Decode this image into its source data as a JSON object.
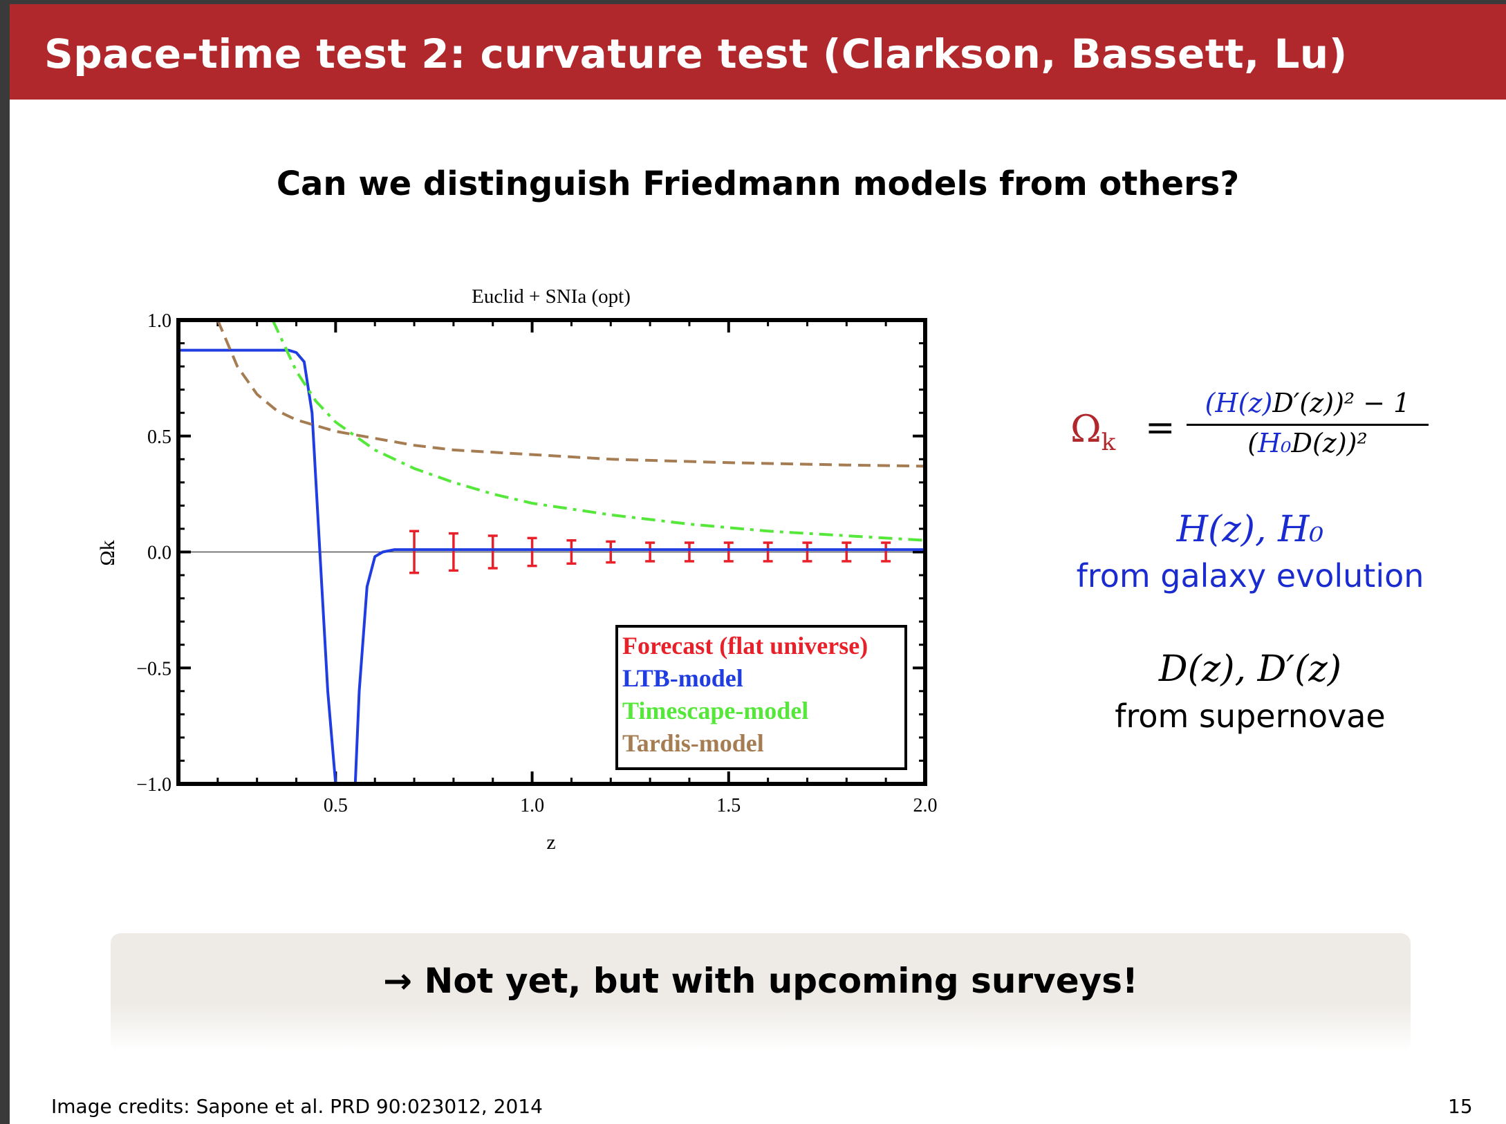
{
  "slide": {
    "title": "Space-time test 2: curvature test (Clarkson, Bassett, Lu)",
    "subtitle": "Can we distinguish Friedmann models from others?",
    "formula": {
      "lhs": "Ω",
      "lhs_sub": "k",
      "eq": "=",
      "numerator_hz": "(H(z)",
      "numerator_rest": "D′(z))² − 1",
      "denominator_pre": "(",
      "denominator_h0": "H₀",
      "denominator_rest": "D(z))²"
    },
    "hz_math": "H(z), H₀",
    "hz_label": "from galaxy evolution",
    "dz_math": "D(z), D′(z)",
    "dz_label": "from supernovae",
    "callout": "→ Not yet, but with upcoming surveys!",
    "credits": "Image credits: Sapone et al. PRD 90:023012, 2014",
    "page_number": "15"
  },
  "chart_data": {
    "type": "line",
    "title": "Euclid + SNIa (opt)",
    "xlabel": "z",
    "ylabel": "Ωk",
    "xlim": [
      0.1,
      2.0
    ],
    "ylim": [
      -1.0,
      1.0
    ],
    "x_ticks": [
      "0.5",
      "1.0",
      "1.5",
      "2.0"
    ],
    "y_ticks": [
      "1.0",
      "0.5",
      "0.0",
      "−0.5",
      "−1.0"
    ],
    "legend_position": "bottom-right",
    "series": [
      {
        "name": "Forecast (flat universe)",
        "color": "#e8202a",
        "style": "errorbar",
        "x": [
          0.7,
          0.8,
          0.9,
          1.0,
          1.1,
          1.2,
          1.3,
          1.4,
          1.5,
          1.6,
          1.7,
          1.8,
          1.9
        ],
        "y": [
          0,
          0,
          0,
          0,
          0,
          0,
          0,
          0,
          0,
          0,
          0,
          0,
          0
        ],
        "yerr": [
          0.09,
          0.08,
          0.07,
          0.06,
          0.05,
          0.045,
          0.04,
          0.04,
          0.04,
          0.04,
          0.04,
          0.04,
          0.04
        ]
      },
      {
        "name": "LTB-model",
        "color": "#1f3de0",
        "style": "solid",
        "x": [
          0.1,
          0.2,
          0.3,
          0.38,
          0.4,
          0.42,
          0.44,
          0.46,
          0.48,
          0.5,
          0.55,
          0.56,
          0.58,
          0.6,
          0.62,
          0.65,
          0.7,
          0.8,
          1.0,
          1.5,
          2.0
        ],
        "y": [
          0.87,
          0.87,
          0.87,
          0.87,
          0.86,
          0.82,
          0.6,
          0.0,
          -0.6,
          -1.0,
          -1.0,
          -0.6,
          -0.15,
          -0.02,
          0.0,
          0.01,
          0.01,
          0.01,
          0.01,
          0.01,
          0.01
        ]
      },
      {
        "name": "Timescape-model",
        "color": "#55e83a",
        "style": "dashdot",
        "x": [
          0.34,
          0.4,
          0.45,
          0.5,
          0.6,
          0.7,
          0.8,
          0.9,
          1.0,
          1.2,
          1.4,
          1.6,
          1.8,
          2.0
        ],
        "y": [
          1.0,
          0.78,
          0.65,
          0.56,
          0.44,
          0.36,
          0.3,
          0.25,
          0.21,
          0.16,
          0.12,
          0.09,
          0.07,
          0.05
        ]
      },
      {
        "name": "Tardis-model",
        "color": "#a67c52",
        "style": "dashed",
        "x": [
          0.2,
          0.25,
          0.3,
          0.35,
          0.4,
          0.5,
          0.6,
          0.7,
          0.8,
          1.0,
          1.2,
          1.5,
          1.8,
          2.0
        ],
        "y": [
          1.0,
          0.8,
          0.68,
          0.61,
          0.57,
          0.52,
          0.49,
          0.46,
          0.44,
          0.42,
          0.4,
          0.385,
          0.375,
          0.37
        ]
      }
    ]
  }
}
